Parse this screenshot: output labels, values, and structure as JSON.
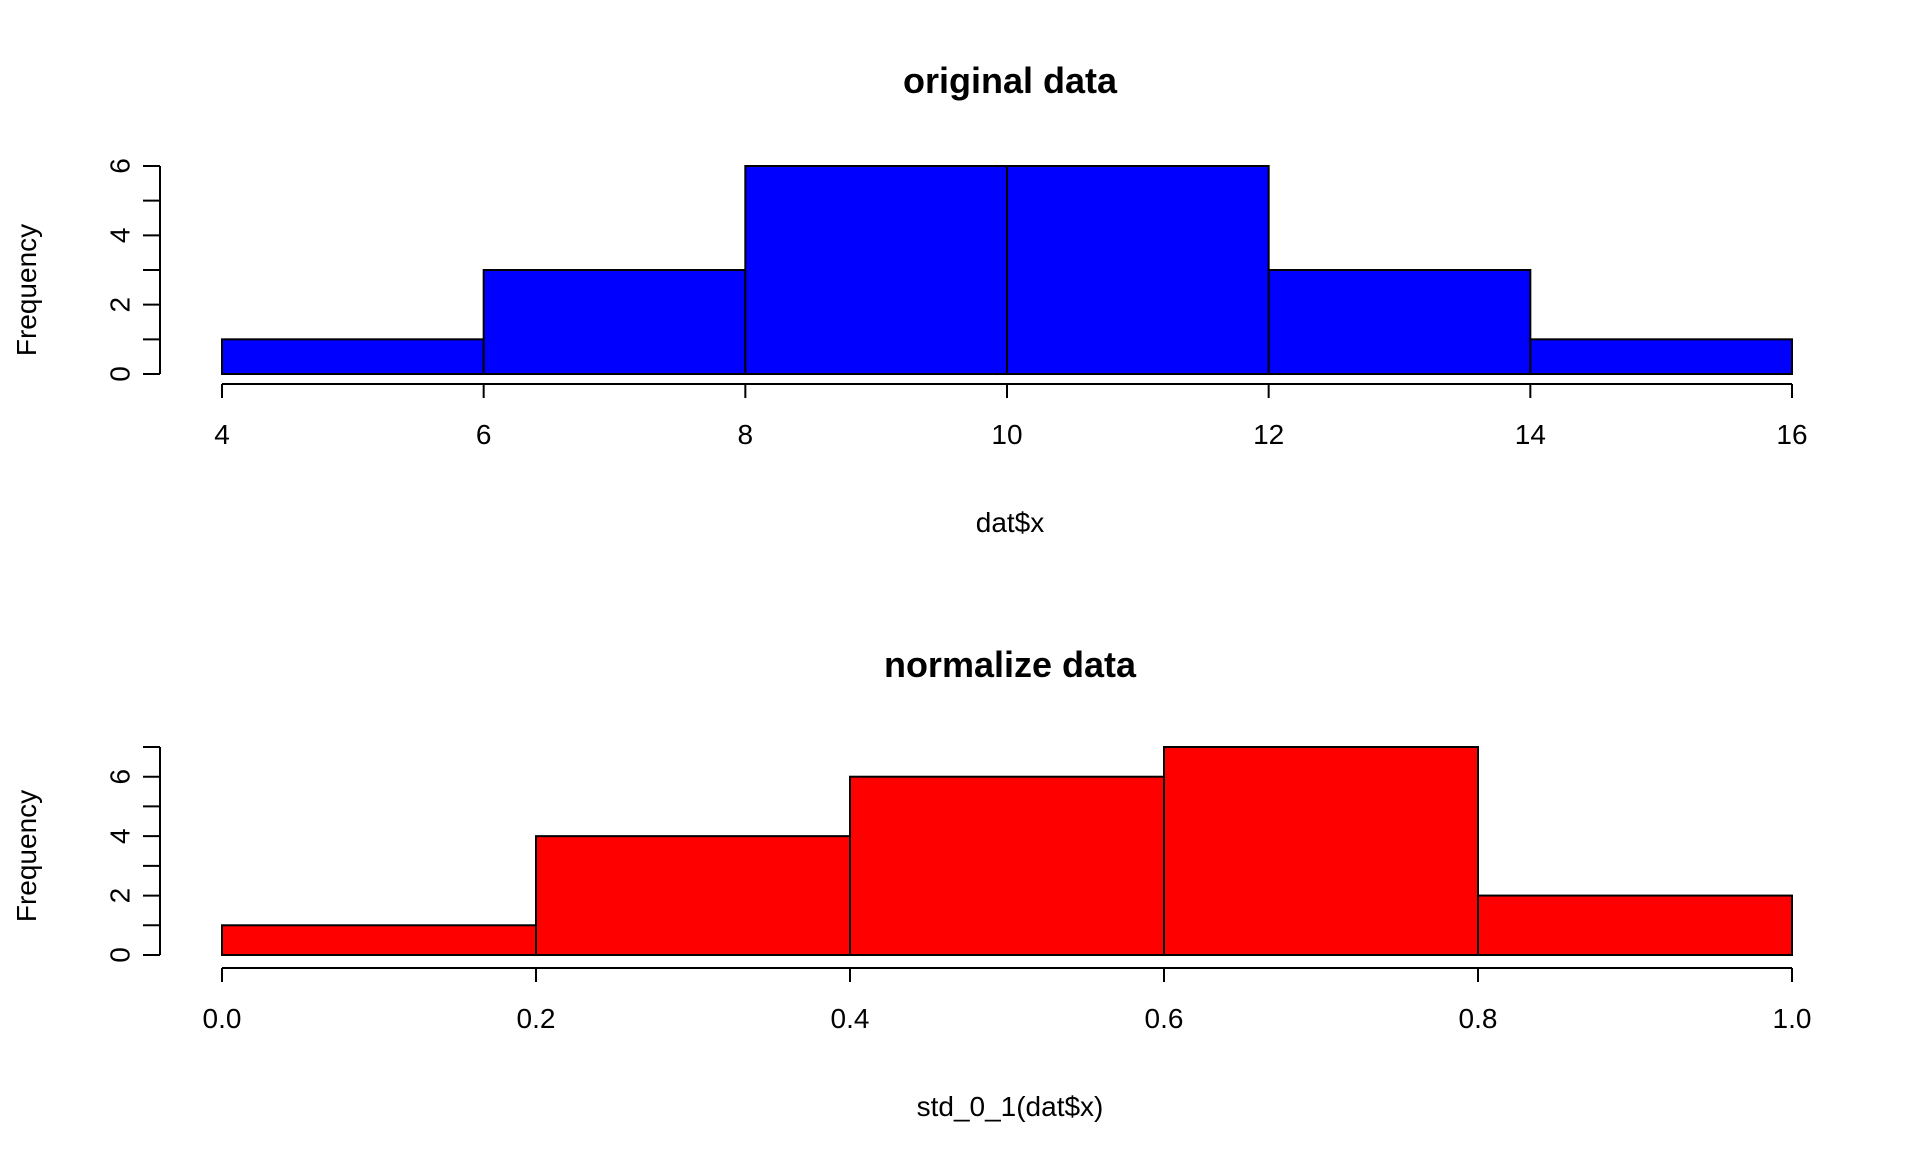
{
  "chart_data": [
    {
      "type": "bar",
      "title": "original data",
      "xlabel": "dat$x",
      "ylabel": "Frequency",
      "color": "#0000ff",
      "bin_edges": [
        4,
        6,
        8,
        10,
        12,
        14,
        16
      ],
      "values": [
        1,
        3,
        6,
        6,
        3,
        1
      ],
      "xlim": [
        4,
        16
      ],
      "ylim": [
        0,
        6
      ],
      "x_ticks": [
        4,
        6,
        8,
        10,
        12,
        14,
        16
      ],
      "x_tick_labels": [
        "4",
        "6",
        "8",
        "10",
        "12",
        "14",
        "16"
      ],
      "y_ticks": [
        0,
        2,
        4,
        6
      ],
      "y_tick_labels": [
        "0",
        "2",
        "4",
        "6"
      ],
      "y_minor_ticks": [
        1,
        3,
        5
      ],
      "grid": false
    },
    {
      "type": "bar",
      "title": "normalize data",
      "xlabel": "std_0_1(dat$x)",
      "ylabel": "Frequency",
      "color": "#ff0000",
      "bin_edges": [
        0.0,
        0.2,
        0.4,
        0.6,
        0.8,
        1.0
      ],
      "values": [
        1,
        4,
        6,
        7,
        2
      ],
      "xlim": [
        0,
        1
      ],
      "ylim": [
        0,
        7
      ],
      "x_ticks": [
        0.0,
        0.2,
        0.4,
        0.6,
        0.8,
        1.0
      ],
      "x_tick_labels": [
        "0.0",
        "0.2",
        "0.4",
        "0.6",
        "0.8",
        "1.0"
      ],
      "y_ticks": [
        0,
        2,
        4,
        6
      ],
      "y_tick_labels": [
        "0",
        "2",
        "4",
        "6"
      ],
      "y_minor_ticks": [
        1,
        3,
        5,
        7
      ],
      "grid": false
    }
  ]
}
